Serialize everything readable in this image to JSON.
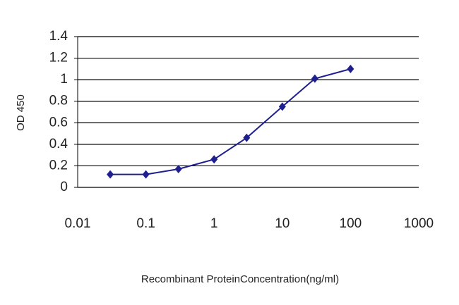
{
  "chart_data": {
    "type": "line",
    "x_label": "Recombinant ProteinConcentration(ng/ml)",
    "y_label": "OD 450",
    "x": [
      0.03,
      0.1,
      0.3,
      1,
      3,
      10,
      30,
      100
    ],
    "values": [
      0.12,
      0.12,
      0.17,
      0.26,
      0.46,
      0.75,
      1.01,
      1.1
    ],
    "color": "#1f1f8f",
    "xscale": "log",
    "xlim": [
      0.01,
      1000
    ],
    "xticks": [
      0.01,
      0.1,
      1,
      10,
      100,
      1000
    ],
    "ylim": [
      0,
      1.4
    ],
    "yticks": [
      0,
      0.2,
      0.4,
      0.6,
      0.8,
      1,
      1.2,
      1.4
    ],
    "grid": true
  }
}
